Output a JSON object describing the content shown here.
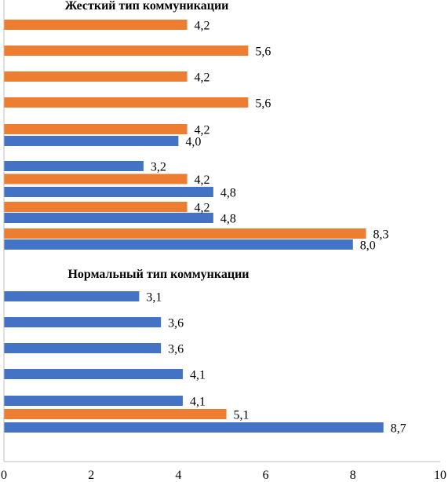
{
  "colors": {
    "orange": "#ED7D31",
    "blue": "#4472C4",
    "axis": "#BFBFBF"
  },
  "chart_data": {
    "type": "bar",
    "orientation": "horizontal",
    "xlim": [
      0,
      10
    ],
    "x_ticks": [
      "0",
      "2",
      "4",
      "6",
      "8",
      "10"
    ],
    "sections": [
      {
        "title": "Жесткий тип коммуникации",
        "groups": [
          {
            "bars": [
              {
                "color": "orange",
                "value": 4.2,
                "label": "4,2"
              }
            ]
          },
          {
            "bars": [
              {
                "color": "orange",
                "value": 5.6,
                "label": "5,6"
              }
            ]
          },
          {
            "bars": [
              {
                "color": "orange",
                "value": 4.2,
                "label": "4,2"
              }
            ]
          },
          {
            "bars": [
              {
                "color": "orange",
                "value": 5.6,
                "label": "5,6"
              }
            ]
          },
          {
            "bars": [
              {
                "color": "orange",
                "value": 4.2,
                "label": "4,2"
              },
              {
                "color": "blue",
                "value": 4.0,
                "label": "4,0"
              }
            ]
          },
          {
            "bars": [
              {
                "color": "blue",
                "value": 3.2,
                "label": "3,2"
              },
              {
                "color": "orange",
                "value": 4.2,
                "label": "4,2"
              },
              {
                "color": "blue",
                "value": 4.8,
                "label": "4,8"
              }
            ]
          },
          {
            "bars": [
              {
                "color": "orange",
                "value": 4.2,
                "label": "4,2"
              },
              {
                "color": "blue",
                "value": 4.8,
                "label": "4,8"
              }
            ]
          },
          {
            "bars": [
              {
                "color": "orange",
                "value": 8.3,
                "label": "8,3"
              },
              {
                "color": "blue",
                "value": 8.0,
                "label": "8,0"
              }
            ]
          }
        ]
      },
      {
        "title": "Нормальный тип коммункации",
        "groups": [
          {
            "bars": [
              {
                "color": "blue",
                "value": 3.1,
                "label": "3,1"
              }
            ]
          },
          {
            "bars": [
              {
                "color": "blue",
                "value": 3.6,
                "label": "3,6"
              }
            ]
          },
          {
            "bars": [
              {
                "color": "blue",
                "value": 3.6,
                "label": "3,6"
              }
            ]
          },
          {
            "bars": [
              {
                "color": "blue",
                "value": 4.1,
                "label": "4,1"
              }
            ]
          },
          {
            "bars": [
              {
                "color": "blue",
                "value": 4.1,
                "label": "4,1"
              },
              {
                "color": "orange",
                "value": 5.1,
                "label": "5,1"
              },
              {
                "color": "blue",
                "value": 8.7,
                "label": "8,7"
              }
            ]
          }
        ]
      }
    ]
  }
}
